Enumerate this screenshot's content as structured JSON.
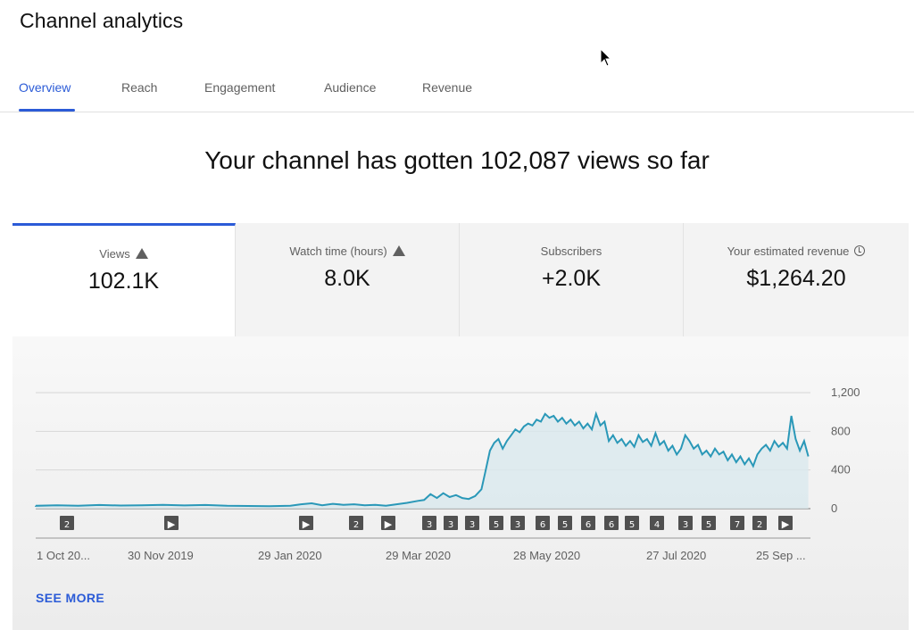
{
  "app": {
    "title": "Channel analytics"
  },
  "tabs": [
    {
      "label": "Overview",
      "active": true
    },
    {
      "label": "Reach",
      "active": false
    },
    {
      "label": "Engagement",
      "active": false
    },
    {
      "label": "Audience",
      "active": false
    },
    {
      "label": "Revenue",
      "active": false
    }
  ],
  "headline": "Your channel has gotten 102,087 views so far",
  "metrics": [
    {
      "label": "Views",
      "value": "102.1K",
      "icon": "warning-icon",
      "active": true
    },
    {
      "label": "Watch time (hours)",
      "value": "8.0K",
      "icon": "warning-icon",
      "active": false
    },
    {
      "label": "Subscribers",
      "value": "+2.0K",
      "icon": "",
      "active": false
    },
    {
      "label": "Your estimated revenue",
      "value": "$1,264.20",
      "icon": "clock-icon",
      "active": false
    }
  ],
  "see_more_label": "SEE MORE",
  "colors": {
    "accent": "#2b5bd7",
    "line": "#2a98b8",
    "area": "#d9e8ee",
    "marker": "#505050"
  },
  "chart_data": {
    "type": "area",
    "y_ticks": [
      "1,200",
      "800",
      "400",
      "0"
    ],
    "ylim": [
      0,
      1200
    ],
    "grid": true,
    "x_labels": [
      "1 Oct 20...",
      "30 Nov 2019",
      "29 Jan 2020",
      "29 Mar 2020",
      "28 May 2020",
      "27 Jul 2020",
      "25 Sep ..."
    ],
    "x_label_days": [
      0,
      60,
      120,
      180,
      240,
      300,
      360
    ],
    "x_days_total": 365,
    "series": [
      {
        "points": [
          [
            0,
            30
          ],
          [
            10,
            35
          ],
          [
            20,
            30
          ],
          [
            30,
            38
          ],
          [
            40,
            32
          ],
          [
            50,
            35
          ],
          [
            60,
            40
          ],
          [
            70,
            33
          ],
          [
            80,
            38
          ],
          [
            90,
            30
          ],
          [
            100,
            28
          ],
          [
            110,
            25
          ],
          [
            120,
            30
          ],
          [
            125,
            45
          ],
          [
            130,
            55
          ],
          [
            135,
            35
          ],
          [
            140,
            50
          ],
          [
            145,
            40
          ],
          [
            150,
            45
          ],
          [
            155,
            35
          ],
          [
            160,
            40
          ],
          [
            165,
            30
          ],
          [
            170,
            45
          ],
          [
            175,
            60
          ],
          [
            180,
            80
          ],
          [
            183,
            90
          ],
          [
            186,
            150
          ],
          [
            189,
            110
          ],
          [
            192,
            160
          ],
          [
            195,
            120
          ],
          [
            198,
            140
          ],
          [
            201,
            110
          ],
          [
            204,
            100
          ],
          [
            207,
            130
          ],
          [
            210,
            200
          ],
          [
            212,
            400
          ],
          [
            214,
            600
          ],
          [
            216,
            680
          ],
          [
            218,
            720
          ],
          [
            220,
            620
          ],
          [
            222,
            700
          ],
          [
            224,
            760
          ],
          [
            226,
            820
          ],
          [
            228,
            790
          ],
          [
            230,
            850
          ],
          [
            232,
            880
          ],
          [
            234,
            860
          ],
          [
            236,
            920
          ],
          [
            238,
            900
          ],
          [
            240,
            980
          ],
          [
            242,
            940
          ],
          [
            244,
            960
          ],
          [
            246,
            900
          ],
          [
            248,
            940
          ],
          [
            250,
            880
          ],
          [
            252,
            920
          ],
          [
            254,
            860
          ],
          [
            256,
            900
          ],
          [
            258,
            830
          ],
          [
            260,
            880
          ],
          [
            262,
            820
          ],
          [
            264,
            980
          ],
          [
            266,
            860
          ],
          [
            268,
            900
          ],
          [
            270,
            700
          ],
          [
            272,
            760
          ],
          [
            274,
            680
          ],
          [
            276,
            720
          ],
          [
            278,
            650
          ],
          [
            280,
            700
          ],
          [
            282,
            640
          ],
          [
            284,
            760
          ],
          [
            286,
            690
          ],
          [
            288,
            720
          ],
          [
            290,
            650
          ],
          [
            292,
            780
          ],
          [
            294,
            660
          ],
          [
            296,
            700
          ],
          [
            298,
            600
          ],
          [
            300,
            650
          ],
          [
            302,
            560
          ],
          [
            304,
            620
          ],
          [
            306,
            760
          ],
          [
            308,
            700
          ],
          [
            310,
            620
          ],
          [
            312,
            660
          ],
          [
            314,
            560
          ],
          [
            316,
            600
          ],
          [
            318,
            540
          ],
          [
            320,
            620
          ],
          [
            322,
            560
          ],
          [
            324,
            590
          ],
          [
            326,
            500
          ],
          [
            328,
            560
          ],
          [
            330,
            480
          ],
          [
            332,
            540
          ],
          [
            334,
            460
          ],
          [
            336,
            520
          ],
          [
            338,
            440
          ],
          [
            340,
            560
          ],
          [
            342,
            620
          ],
          [
            344,
            660
          ],
          [
            346,
            600
          ],
          [
            348,
            700
          ],
          [
            350,
            640
          ],
          [
            352,
            680
          ],
          [
            354,
            620
          ],
          [
            356,
            960
          ],
          [
            358,
            720
          ],
          [
            360,
            600
          ],
          [
            362,
            700
          ],
          [
            364,
            540
          ]
        ]
      }
    ],
    "markers": [
      {
        "day": 20,
        "label": "2"
      },
      {
        "day": 90,
        "label": "▶"
      },
      {
        "day": 155,
        "label": "▶"
      },
      {
        "day": 183,
        "label": "2"
      },
      {
        "day": 198,
        "label": "▶"
      },
      {
        "day": 222,
        "label": "3"
      },
      {
        "day": 233,
        "label": "3"
      },
      {
        "day": 244,
        "label": "3"
      },
      {
        "day": 255,
        "label": "5"
      },
      {
        "day": 266,
        "label": "3"
      },
      {
        "day": 278,
        "label": "6"
      },
      {
        "day": 290,
        "label": "5"
      },
      {
        "day": 302,
        "label": "6"
      },
      {
        "day": 314,
        "label": "6"
      },
      {
        "day": 326,
        "label": "5"
      },
      {
        "day": 338,
        "label": "4"
      },
      {
        "day": 350,
        "label": "3"
      },
      {
        "day": 359,
        "label": "5"
      },
      {
        "day": 371,
        "label": "7"
      },
      {
        "day": 382,
        "label": "2"
      },
      {
        "day": 392,
        "label": "▶"
      }
    ]
  }
}
